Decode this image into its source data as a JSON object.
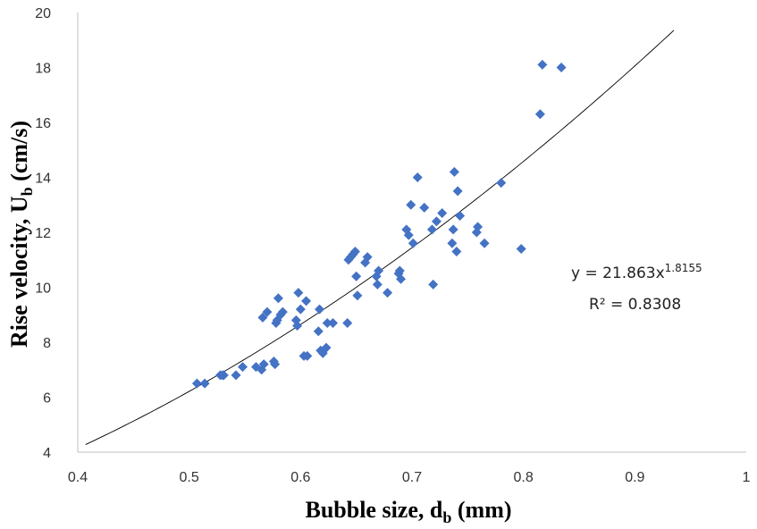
{
  "chart_data": {
    "type": "scatter",
    "xlabel": "Bubble size, d",
    "xlabel_sub": "b",
    "xlabel_unit": " (mm)",
    "ylabel": "Rise velocity, U",
    "ylabel_sub": "b",
    "ylabel_unit": " (cm/s)",
    "xlim": [
      0.4,
      1.0
    ],
    "ylim": [
      4,
      20
    ],
    "xticks": [
      0.4,
      0.5,
      0.6,
      0.7,
      0.8,
      0.9,
      1.0
    ],
    "xtick_labels": [
      "0.4",
      "0.5",
      "0.6",
      "0.7",
      "0.8",
      "0.9",
      "1"
    ],
    "yticks": [
      4,
      6,
      8,
      10,
      12,
      14,
      16,
      18,
      20
    ],
    "ytick_labels": [
      "4",
      "6",
      "8",
      "10",
      "12",
      "14",
      "16",
      "18",
      "20"
    ],
    "grid": false,
    "marker": "diamond",
    "marker_color": "#4472C4",
    "points": [
      [
        0.507,
        6.5
      ],
      [
        0.514,
        6.5
      ],
      [
        0.528,
        6.8
      ],
      [
        0.53,
        6.8
      ],
      [
        0.531,
        6.8
      ],
      [
        0.542,
        6.8
      ],
      [
        0.548,
        7.1
      ],
      [
        0.56,
        7.1
      ],
      [
        0.565,
        7.0
      ],
      [
        0.567,
        7.2
      ],
      [
        0.566,
        8.9
      ],
      [
        0.57,
        9.1
      ],
      [
        0.576,
        7.3
      ],
      [
        0.577,
        7.2
      ],
      [
        0.578,
        8.7
      ],
      [
        0.579,
        8.8
      ],
      [
        0.58,
        9.6
      ],
      [
        0.582,
        9.0
      ],
      [
        0.584,
        9.1
      ],
      [
        0.596,
        8.8
      ],
      [
        0.597,
        8.6
      ],
      [
        0.598,
        9.8
      ],
      [
        0.6,
        9.2
      ],
      [
        0.603,
        7.5
      ],
      [
        0.605,
        9.5
      ],
      [
        0.606,
        7.5
      ],
      [
        0.616,
        8.4
      ],
      [
        0.617,
        9.2
      ],
      [
        0.618,
        7.7
      ],
      [
        0.62,
        7.6
      ],
      [
        0.623,
        7.8
      ],
      [
        0.624,
        8.7
      ],
      [
        0.629,
        8.7
      ],
      [
        0.642,
        8.7
      ],
      [
        0.643,
        11.0
      ],
      [
        0.645,
        11.1
      ],
      [
        0.647,
        11.2
      ],
      [
        0.649,
        11.3
      ],
      [
        0.65,
        10.4
      ],
      [
        0.651,
        9.7
      ],
      [
        0.658,
        10.9
      ],
      [
        0.66,
        11.1
      ],
      [
        0.668,
        10.4
      ],
      [
        0.669,
        10.1
      ],
      [
        0.67,
        10.6
      ],
      [
        0.678,
        9.8
      ],
      [
        0.688,
        10.5
      ],
      [
        0.689,
        10.6
      ],
      [
        0.69,
        10.3
      ],
      [
        0.695,
        12.1
      ],
      [
        0.697,
        11.9
      ],
      [
        0.699,
        13.0
      ],
      [
        0.701,
        11.6
      ],
      [
        0.705,
        14.0
      ],
      [
        0.711,
        12.9
      ],
      [
        0.719,
        10.1
      ],
      [
        0.718,
        12.1
      ],
      [
        0.722,
        12.4
      ],
      [
        0.727,
        12.7
      ],
      [
        0.736,
        11.6
      ],
      [
        0.737,
        12.1
      ],
      [
        0.738,
        14.2
      ],
      [
        0.74,
        11.3
      ],
      [
        0.741,
        13.5
      ],
      [
        0.743,
        12.6
      ],
      [
        0.758,
        12.0
      ],
      [
        0.759,
        12.2
      ],
      [
        0.765,
        11.6
      ],
      [
        0.78,
        13.8
      ],
      [
        0.798,
        11.4
      ],
      [
        0.815,
        16.3
      ],
      [
        0.817,
        18.1
      ],
      [
        0.834,
        18.0
      ]
    ],
    "trendline": {
      "type": "power",
      "a": 21.863,
      "b": 1.8155,
      "x_range": [
        0.407,
        0.935
      ],
      "color": "#000000",
      "equation_label": "y = 21.863x",
      "equation_exponent": "1.8155",
      "r2_label": "R² = 0.8308"
    }
  }
}
